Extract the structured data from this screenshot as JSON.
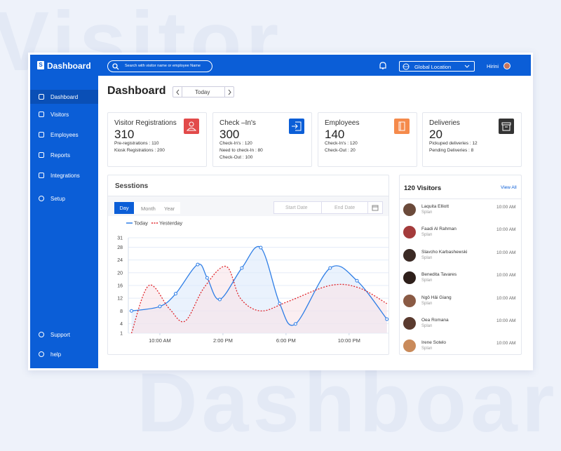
{
  "backdrop": {
    "top": "Visitor",
    "bottom": "Dashboard"
  },
  "header": {
    "logo_letter": "S",
    "logo": "Dashboard",
    "search_placeholder": "Search with visitor name or employee Name",
    "location": "Global Location",
    "user": "Hirini"
  },
  "sidebar": {
    "items": [
      "Dashboard",
      "Visitors",
      "Employees",
      "Reports",
      "Integrations",
      "Setup"
    ],
    "footer": [
      "Support",
      "help"
    ]
  },
  "page": {
    "title": "Dashboard",
    "date": "Today"
  },
  "cards": [
    {
      "title": "Visitor Registrations",
      "value": 310,
      "details": [
        "Pre-registrations : 110",
        "Kiosk Registrations : 200"
      ]
    },
    {
      "title": "Check –In's",
      "value": 300,
      "details": [
        "Check-In's : 120",
        "Need to check-In : 80",
        "Check-Out : 100"
      ]
    },
    {
      "title": "Employees",
      "value": 140,
      "details": [
        "Check-In's : 120",
        "Check-Out : 20"
      ]
    },
    {
      "title": "Deliveries",
      "value": 20,
      "details": [
        "Pickuped deliveries : 12",
        "Pending Deliveries : 8"
      ]
    }
  ],
  "sessions": {
    "title": "Sesstions",
    "tabs": [
      "Day",
      "Month",
      "Year"
    ],
    "start": "Start Date",
    "end": "End Date"
  },
  "chart_data": {
    "type": "line",
    "legend": "top-left",
    "grid": true,
    "series": [
      {
        "name": "Today",
        "color": "#2f7ee6",
        "fill": "#dce9fb",
        "line_style": "solid",
        "markers": true,
        "x": [
          8.2,
          10,
          11,
          12.4,
          13,
          13.8,
          15.2,
          16.4,
          17.6,
          18.6,
          20.8,
          22.5,
          24.4
        ],
        "values": [
          8,
          9.4,
          13.4,
          22.6,
          18.4,
          11.6,
          21.5,
          27.9,
          10.3,
          3.9,
          21.5,
          17.5,
          5.4
        ]
      },
      {
        "name": "Yesterday",
        "color": "#e0262b",
        "fill": "#f8e3e8",
        "line_style": "dashed",
        "markers": false,
        "x": [
          8.2,
          9.3,
          10.6,
          11.6,
          12.8,
          14.2,
          15.1,
          16.4,
          18.1,
          20.8,
          22.6,
          24.4
        ],
        "values": [
          1,
          16,
          8.7,
          4.8,
          15.3,
          22,
          12,
          8,
          10.9,
          16,
          15.3,
          10.3
        ]
      }
    ],
    "xlim": [
      8,
      24.5
    ],
    "xticks": [
      {
        "value": 10,
        "label": "10:00 AM"
      },
      {
        "value": 14,
        "label": "2:00 PM"
      },
      {
        "value": 18,
        "label": "6:00 PM"
      },
      {
        "value": 22,
        "label": "10:00 PM"
      }
    ],
    "ylim": [
      1,
      31
    ],
    "yticks": [
      1,
      4,
      8,
      12,
      16,
      20,
      24,
      28,
      31
    ]
  },
  "visitors": {
    "title": "120 Visitors",
    "view_all": "View All",
    "list": [
      {
        "name": "Laquita Elliott",
        "company": "Splan",
        "time": "10:00 AM"
      },
      {
        "name": "Faadi Al Rahman",
        "company": "Splan",
        "time": "10:00 AM"
      },
      {
        "name": "Slavcho Karbashewski",
        "company": "Splan",
        "time": "10:00 AM"
      },
      {
        "name": "Benedita Tavares",
        "company": "Splan",
        "time": "10:00 AM"
      },
      {
        "name": "Ngô Hải Giang",
        "company": "Splan",
        "time": "10:00 AM"
      },
      {
        "name": "Oea Romana",
        "company": "Splan",
        "time": "10:00 AM"
      },
      {
        "name": "Irene Sotelo",
        "company": "Splan",
        "time": "10:00 AM"
      }
    ]
  }
}
